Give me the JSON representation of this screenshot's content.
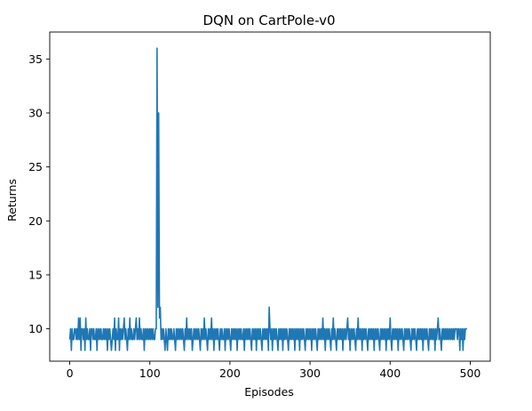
{
  "chart_data": {
    "type": "line",
    "title": "DQN on CartPole-v0",
    "xlabel": "Episodes",
    "ylabel": "Returns",
    "xlim": [
      -25,
      525
    ],
    "ylim": [
      7.0,
      37.5
    ],
    "xticks": [
      0,
      100,
      200,
      300,
      400,
      500
    ],
    "yticks": [
      10,
      15,
      20,
      25,
      30,
      35
    ],
    "grid": false,
    "line_color": "#1f77b4",
    "series": [
      {
        "x_start": 0,
        "x_step": 1,
        "values": [
          9,
          10,
          8,
          10,
          9,
          9,
          10,
          10,
          9,
          10,
          9,
          11,
          9,
          11,
          8,
          10,
          10,
          9,
          10,
          8,
          11,
          9,
          10,
          9,
          9,
          10,
          8,
          10,
          10,
          9,
          10,
          9,
          9,
          10,
          8,
          10,
          9,
          10,
          9,
          10,
          9,
          9,
          10,
          9,
          10,
          9,
          10,
          8,
          10,
          9,
          10,
          9,
          8,
          9,
          10,
          9,
          11,
          8,
          10,
          9,
          9,
          11,
          8,
          10,
          9,
          10,
          9,
          10,
          11,
          9,
          10,
          9,
          8,
          10,
          9,
          11,
          9,
          10,
          9,
          9,
          10,
          9,
          10,
          11,
          9,
          10,
          9,
          11,
          9,
          10,
          9,
          9,
          10,
          8,
          10,
          9,
          10,
          9,
          10,
          9,
          10,
          9,
          10,
          9,
          10,
          9,
          9,
          10,
          10,
          36,
          12,
          30,
          11,
          12,
          9,
          10,
          9,
          10,
          9,
          8,
          10,
          9,
          8,
          10,
          9,
          10,
          9,
          10,
          9,
          9,
          10,
          9,
          8,
          10,
          9,
          10,
          9,
          10,
          9,
          10,
          9,
          10,
          9,
          8,
          10,
          9,
          11,
          9,
          10,
          9,
          10,
          9,
          10,
          8,
          9,
          10,
          9,
          10,
          9,
          10,
          9,
          10,
          9,
          8,
          10,
          9,
          10,
          9,
          11,
          9,
          10,
          9,
          8,
          10,
          9,
          10,
          9,
          11,
          9,
          10,
          8,
          10,
          9,
          10,
          9,
          10,
          9,
          8,
          10,
          9,
          10,
          9,
          9,
          10,
          8,
          10,
          9,
          10,
          9,
          10,
          9,
          8,
          10,
          9,
          10,
          9,
          10,
          9,
          10,
          8,
          10,
          9,
          10,
          9,
          10,
          9,
          9,
          10,
          8,
          10,
          9,
          10,
          9,
          10,
          9,
          10,
          9,
          8,
          10,
          9,
          10,
          9,
          10,
          8,
          10,
          9,
          10,
          9,
          10,
          9,
          8,
          10,
          9,
          10,
          9,
          10,
          9,
          10,
          8,
          12,
          10,
          9,
          10,
          8,
          10,
          9,
          10,
          9,
          10,
          9,
          8,
          10,
          9,
          10,
          9,
          10,
          8,
          10,
          9,
          10,
          9,
          10,
          9,
          8,
          10,
          9,
          10,
          9,
          10,
          9,
          10,
          8,
          10,
          9,
          10,
          9,
          10,
          8,
          10,
          9,
          10,
          9,
          10,
          9,
          8,
          10,
          9,
          10,
          9,
          10,
          9,
          10,
          8,
          10,
          9,
          10,
          9,
          10,
          9,
          8,
          10,
          9,
          10,
          9,
          10,
          9,
          11,
          9,
          10,
          8,
          10,
          9,
          10,
          9,
          10,
          9,
          8,
          10,
          9,
          11,
          9,
          10,
          9,
          8,
          10,
          9,
          10,
          9,
          10,
          9,
          10,
          8,
          10,
          9,
          10,
          9,
          10,
          11,
          9,
          10,
          8,
          10,
          9,
          10,
          9,
          10,
          9,
          8,
          10,
          9,
          11,
          9,
          10,
          9,
          10,
          8,
          10,
          9,
          10,
          9,
          10,
          9,
          8,
          10,
          9,
          10,
          9,
          10,
          9,
          10,
          8,
          10,
          9,
          10,
          9,
          10,
          9,
          8,
          10,
          9,
          10,
          9,
          10,
          9,
          10,
          8,
          10,
          9,
          10,
          9,
          11,
          9,
          8,
          10,
          9,
          10,
          9,
          10,
          9,
          10,
          8,
          10,
          9,
          10,
          9,
          10,
          9,
          8,
          10,
          9,
          10,
          9,
          10,
          9,
          10,
          9,
          8,
          10,
          9,
          10,
          9,
          10,
          9,
          8,
          10,
          9,
          10,
          9,
          10,
          9,
          10,
          8,
          10,
          9,
          10,
          9,
          10,
          9,
          8,
          10,
          9,
          10,
          9,
          10,
          9,
          10,
          8,
          10,
          9,
          10,
          11,
          9,
          10,
          9,
          8,
          10,
          9,
          10,
          9,
          10,
          9,
          10,
          9,
          10,
          9,
          10,
          9,
          10,
          9,
          10,
          9,
          10,
          10,
          10,
          9,
          10,
          10,
          8,
          10,
          9,
          10,
          8,
          10,
          9,
          10,
          10,
          10
        ]
      }
    ]
  }
}
